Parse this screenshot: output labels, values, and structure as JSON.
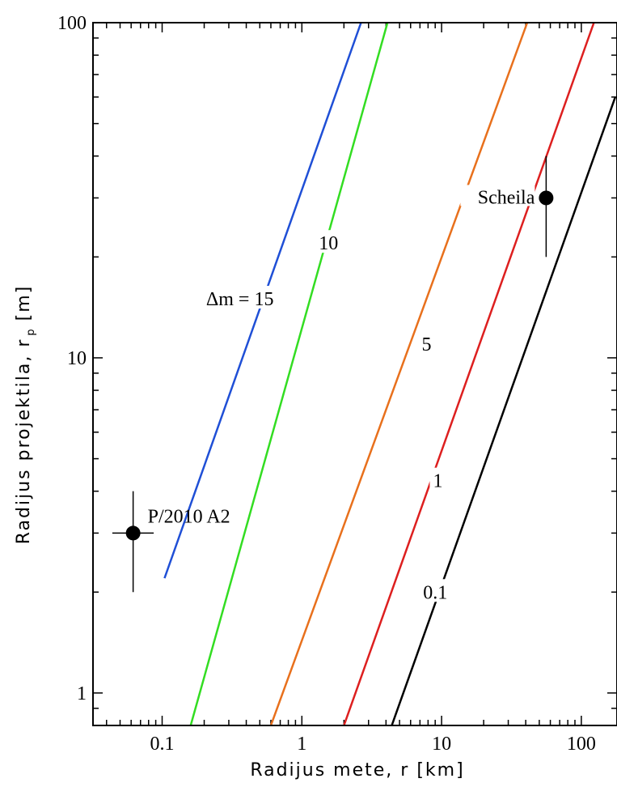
{
  "chart_data": {
    "type": "line",
    "title": "",
    "xlabel": "Radijus mete, r [km]",
    "ylabel_main": "Radijus projektila, r",
    "ylabel_sub": "p",
    "ylabel_unit": "[m]",
    "xscale": "log",
    "yscale": "log",
    "xlim": [
      0.032,
      180
    ],
    "ylim": [
      0.8,
      100
    ],
    "x_ticks": [
      {
        "value": 0.1,
        "label": "0.1"
      },
      {
        "value": 1,
        "label": "1"
      },
      {
        "value": 10,
        "label": "10"
      },
      {
        "value": 100,
        "label": "100"
      }
    ],
    "y_ticks": [
      {
        "value": 1,
        "label": "1"
      },
      {
        "value": 10,
        "label": "10"
      },
      {
        "value": 100,
        "label": "100"
      }
    ],
    "grid": false,
    "series": [
      {
        "name": "Δm = 15",
        "color": "#1f4fd6",
        "x": [
          0.104,
          2.65
        ],
        "y": [
          2.2,
          100
        ],
        "label": {
          "text": "Δm = 15",
          "x": 0.36,
          "y": 15
        }
      },
      {
        "name": "10",
        "color": "#33dd22",
        "x": [
          0.16,
          4.1
        ],
        "y": [
          0.8,
          100
        ],
        "label": {
          "text": "10",
          "x": 1.55,
          "y": 22
        }
      },
      {
        "name": "5",
        "color": "#e8701c",
        "x": [
          0.6,
          41
        ],
        "y": [
          0.8,
          100
        ],
        "label": {
          "text": "5",
          "x": 7.8,
          "y": 11
        }
      },
      {
        "name": "1",
        "color": "#dd1f1f",
        "x": [
          2.0,
          123
        ],
        "y": [
          0.8,
          100
        ],
        "label": {
          "text": "1",
          "x": 9.4,
          "y": 4.3
        }
      },
      {
        "name": "0.1",
        "color": "#000000",
        "x": [
          4.4,
          175
        ],
        "y": [
          0.8,
          60
        ],
        "label": {
          "text": "0.1",
          "x": 9.0,
          "y": 2.0
        }
      }
    ],
    "points": [
      {
        "name": "P/2010 A2",
        "x": 0.062,
        "y": 3.0,
        "xerr": [
          0.044,
          0.087
        ],
        "yerr": [
          2.0,
          4.0
        ]
      },
      {
        "name": "Scheila",
        "x": 56,
        "y": 30,
        "xerr": null,
        "yerr": [
          20,
          40
        ]
      }
    ]
  }
}
